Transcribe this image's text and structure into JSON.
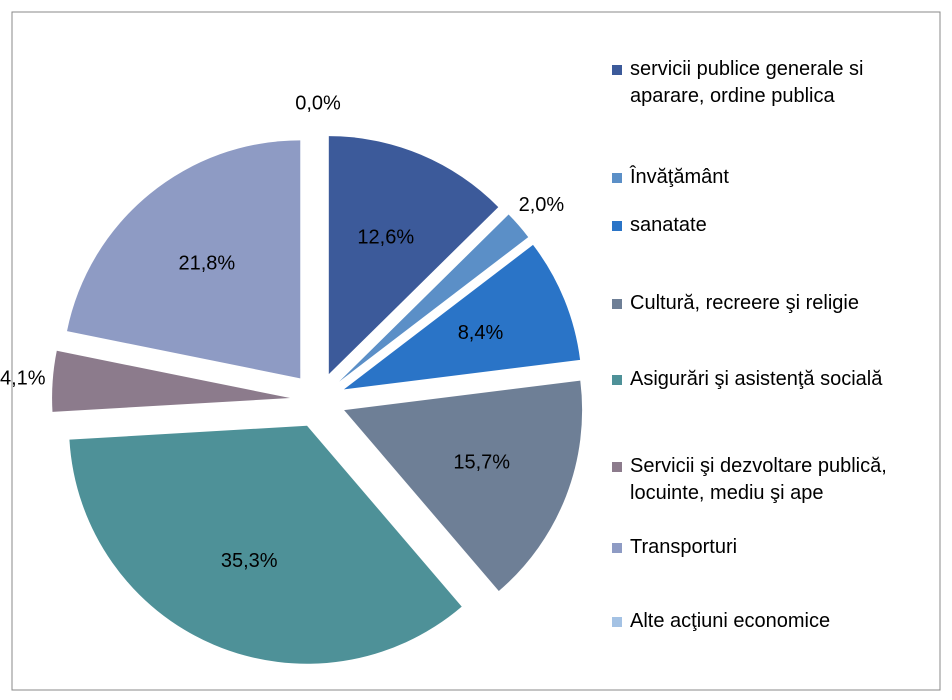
{
  "chart_data": {
    "type": "pie",
    "categories": [
      "servicii publice generale si aparare, ordine publica",
      "Învăţământ",
      "sanatate",
      "Cultură, recreere şi religie",
      "Asigurări şi asistenţă socială",
      "Servicii şi dezvoltare publică, locuinte, mediu şi ape",
      "Transporturi",
      "Alte acţiuni economice"
    ],
    "values": [
      12.6,
      2.0,
      8.4,
      15.7,
      35.3,
      4.1,
      21.8,
      0.0
    ],
    "value_labels": [
      "12,6%",
      "2,0%",
      "8,4%",
      "15,7%",
      "35,3%",
      "4,1%",
      "21,8%",
      "0,0%"
    ],
    "colors": [
      "#3c5a9a",
      "#5b8fc7",
      "#2a74c7",
      "#6e7f96",
      "#4e9198",
      "#8c7b8c",
      "#8e9bc4",
      "#a4c2e4"
    ],
    "exploded": true,
    "legend": "right"
  }
}
